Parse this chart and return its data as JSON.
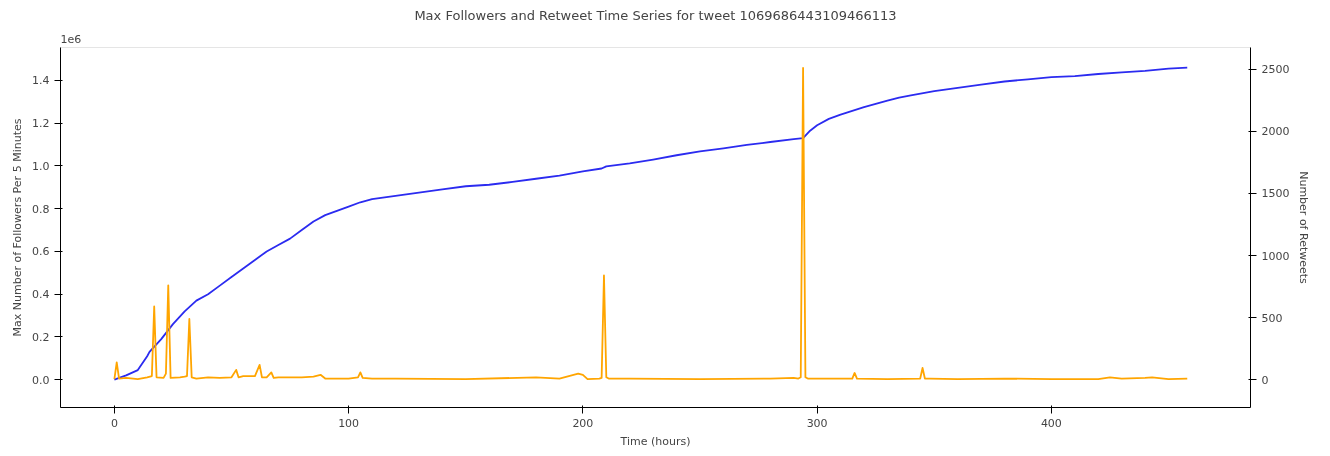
{
  "chart_data": {
    "type": "line",
    "title": "Max Followers and Retweet Time Series for tweet 1069686443109466113",
    "xlabel": "Time (hours)",
    "ylabel": "Max Number of Followers Per 5 Minutes",
    "y2label": "Number of Retweets",
    "annotations": [
      "1e6"
    ],
    "xlim": [
      -23,
      485
    ],
    "xticks": [
      0,
      100,
      200,
      300,
      400
    ],
    "ylim": [
      -0.13,
      1.554
    ],
    "yticks": [
      {
        "value": 0,
        "label": "0.0"
      },
      0.2,
      0.4,
      0.6,
      0.8,
      {
        "value": 1,
        "label": "1.0"
      },
      1.2,
      1.4
    ],
    "y2lim": [
      -223,
      2675
    ],
    "y2ticks": [
      0,
      500,
      1000,
      1500,
      2000,
      2500
    ],
    "grid": false,
    "line_style": "solid",
    "marker": "none",
    "series": [
      {
        "color": "#2b2bf0",
        "axis": "y",
        "x": [
          0,
          5,
          10,
          14,
          15,
          20,
          25,
          30,
          35,
          40,
          45,
          50,
          55,
          60,
          65,
          70,
          75,
          80,
          85,
          90,
          95,
          100,
          105,
          110,
          120,
          130,
          140,
          150,
          160,
          170,
          180,
          190,
          200,
          208,
          210,
          220,
          230,
          240,
          250,
          260,
          270,
          280,
          290,
          294,
          297,
          300,
          305,
          310,
          320,
          330,
          335,
          340,
          350,
          360,
          370,
          380,
          390,
          400,
          410,
          420,
          430,
          440,
          450,
          458
        ],
        "values": [
          0,
          0.02,
          0.045,
          0.11,
          0.13,
          0.19,
          0.26,
          0.32,
          0.37,
          0.4,
          0.44,
          0.48,
          0.52,
          0.56,
          0.6,
          0.63,
          0.66,
          0.7,
          0.74,
          0.77,
          0.79,
          0.81,
          0.83,
          0.845,
          0.86,
          0.875,
          0.89,
          0.905,
          0.912,
          0.925,
          0.94,
          0.955,
          0.975,
          0.988,
          0.998,
          1.012,
          1.03,
          1.05,
          1.068,
          1.082,
          1.098,
          1.112,
          1.125,
          1.13,
          1.165,
          1.19,
          1.22,
          1.24,
          1.275,
          1.305,
          1.32,
          1.33,
          1.35,
          1.365,
          1.38,
          1.395,
          1.405,
          1.415,
          1.42,
          1.43,
          1.438,
          1.445,
          1.455,
          1.46
        ]
      },
      {
        "color": "#ffa500",
        "axis": "y2",
        "x": [
          0,
          1,
          2,
          5,
          10,
          14,
          16,
          17,
          18,
          21,
          22,
          23,
          24,
          28,
          30,
          31,
          32,
          33,
          35,
          40,
          45,
          50,
          52,
          53,
          55,
          60,
          62,
          63,
          65,
          67,
          68,
          70,
          80,
          85,
          88,
          90,
          100,
          104,
          105,
          106,
          110,
          120,
          150,
          180,
          190,
          198,
          200,
          202,
          207,
          208,
          209,
          210,
          211,
          220,
          250,
          280,
          290,
          292,
          293,
          294,
          295,
          296,
          300,
          310,
          315,
          316,
          317,
          330,
          344,
          345,
          346,
          348,
          360,
          380,
          400,
          420,
          425,
          430,
          440,
          443,
          450,
          458
        ],
        "values": [
          5,
          140,
          10,
          15,
          5,
          20,
          30,
          590,
          20,
          15,
          50,
          760,
          15,
          20,
          25,
          30,
          490,
          20,
          10,
          20,
          15,
          20,
          80,
          20,
          30,
          30,
          120,
          20,
          20,
          60,
          15,
          20,
          20,
          25,
          40,
          10,
          10,
          20,
          60,
          15,
          10,
          10,
          5,
          20,
          10,
          50,
          40,
          5,
          10,
          15,
          840,
          20,
          10,
          10,
          5,
          10,
          15,
          10,
          20,
          2510,
          20,
          10,
          10,
          10,
          10,
          55,
          10,
          5,
          10,
          95,
          10,
          10,
          5,
          10,
          5,
          5,
          20,
          10,
          15,
          20,
          5,
          10
        ]
      }
    ]
  }
}
